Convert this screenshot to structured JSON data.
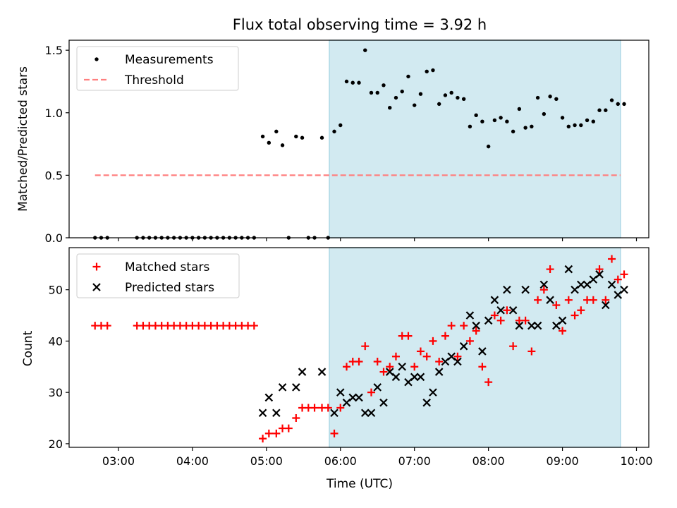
{
  "chart_data": [
    {
      "type": "scatter",
      "title": "Flux total observing time = 3.92 h",
      "xlabel": "",
      "ylabel": "Matched/Predicted stars",
      "xlim": [
        "02:20",
        "10:10"
      ],
      "ylim": [
        0,
        1.58
      ],
      "y_ticks": [
        0.0,
        0.5,
        1.0,
        1.5
      ],
      "y_tick_labels": [
        "0.0",
        "0.5",
        "1.0",
        "1.5"
      ],
      "x_ticks": [
        "03:00",
        "04:00",
        "05:00",
        "06:00",
        "07:00",
        "08:00",
        "09:00",
        "10:00"
      ],
      "x_tick_labels": [],
      "shaded_interval": {
        "start": "05:51",
        "end": "09:47",
        "color": "#add8e6"
      },
      "legend": {
        "location": "upper left",
        "entries": [
          "Measurements",
          "Threshold"
        ]
      },
      "series": [
        {
          "name": "Measurements",
          "style": "dot",
          "color": "#000000",
          "points": [
            [
              "02:41",
              0
            ],
            [
              "02:46",
              0
            ],
            [
              "02:51",
              0
            ],
            [
              "03:15",
              0
            ],
            [
              "03:20",
              0
            ],
            [
              "03:25",
              0
            ],
            [
              "03:30",
              0
            ],
            [
              "03:35",
              0
            ],
            [
              "03:40",
              0
            ],
            [
              "03:45",
              0
            ],
            [
              "03:50",
              0
            ],
            [
              "03:55",
              0
            ],
            [
              "04:00",
              0
            ],
            [
              "04:05",
              0
            ],
            [
              "04:10",
              0
            ],
            [
              "04:15",
              0
            ],
            [
              "04:20",
              0
            ],
            [
              "04:25",
              0
            ],
            [
              "04:30",
              0
            ],
            [
              "04:35",
              0
            ],
            [
              "04:40",
              0
            ],
            [
              "04:45",
              0
            ],
            [
              "04:50",
              0
            ],
            [
              "04:57",
              0.81
            ],
            [
              "05:02",
              0.76
            ],
            [
              "05:08",
              0.85
            ],
            [
              "05:13",
              0.74
            ],
            [
              "05:18",
              0
            ],
            [
              "05:24",
              0.81
            ],
            [
              "05:29",
              0.8
            ],
            [
              "05:34",
              0
            ],
            [
              "05:39",
              0
            ],
            [
              "05:45",
              0.8
            ],
            [
              "05:50",
              0
            ],
            [
              "05:55",
              0.85
            ],
            [
              "06:00",
              0.9
            ],
            [
              "06:05",
              1.25
            ],
            [
              "06:10",
              1.24
            ],
            [
              "06:15",
              1.24
            ],
            [
              "06:20",
              1.5
            ],
            [
              "06:25",
              1.16
            ],
            [
              "06:30",
              1.16
            ],
            [
              "06:35",
              1.22
            ],
            [
              "06:40",
              1.04
            ],
            [
              "06:45",
              1.12
            ],
            [
              "06:50",
              1.17
            ],
            [
              "06:55",
              1.29
            ],
            [
              "07:00",
              1.06
            ],
            [
              "07:05",
              1.15
            ],
            [
              "07:10",
              1.33
            ],
            [
              "07:15",
              1.34
            ],
            [
              "07:20",
              1.07
            ],
            [
              "07:25",
              1.14
            ],
            [
              "07:30",
              1.16
            ],
            [
              "07:35",
              1.12
            ],
            [
              "07:40",
              1.11
            ],
            [
              "07:45",
              0.89
            ],
            [
              "07:50",
              0.98
            ],
            [
              "07:55",
              0.93
            ],
            [
              "08:00",
              0.73
            ],
            [
              "08:05",
              0.94
            ],
            [
              "08:10",
              0.96
            ],
            [
              "08:15",
              0.93
            ],
            [
              "08:20",
              0.85
            ],
            [
              "08:25",
              1.03
            ],
            [
              "08:30",
              0.88
            ],
            [
              "08:35",
              0.89
            ],
            [
              "08:40",
              1.12
            ],
            [
              "08:45",
              0.99
            ],
            [
              "08:50",
              1.13
            ],
            [
              "08:55",
              1.11
            ],
            [
              "09:00",
              0.96
            ],
            [
              "09:05",
              0.89
            ],
            [
              "09:10",
              0.9
            ],
            [
              "09:15",
              0.9
            ],
            [
              "09:20",
              0.94
            ],
            [
              "09:25",
              0.93
            ],
            [
              "09:30",
              1.02
            ],
            [
              "09:35",
              1.02
            ],
            [
              "09:40",
              1.1
            ],
            [
              "09:45",
              1.07
            ],
            [
              "09:50",
              1.07
            ]
          ]
        },
        {
          "name": "Threshold",
          "style": "dashed-line",
          "color": "#ff7f7f",
          "points": [
            [
              "02:41",
              0.5
            ],
            [
              "09:47",
              0.5
            ]
          ]
        }
      ]
    },
    {
      "type": "scatter",
      "title": "",
      "xlabel": "Time (UTC)",
      "ylabel": "Count",
      "xlim": [
        "02:20",
        "10:10"
      ],
      "ylim": [
        19.3,
        58.2
      ],
      "y_ticks": [
        20,
        30,
        40,
        50
      ],
      "y_tick_labels": [
        "20",
        "30",
        "40",
        "50"
      ],
      "x_ticks": [
        "03:00",
        "04:00",
        "05:00",
        "06:00",
        "07:00",
        "08:00",
        "09:00",
        "10:00"
      ],
      "x_tick_labels": [
        "03:00",
        "04:00",
        "05:00",
        "06:00",
        "07:00",
        "08:00",
        "09:00",
        "10:00"
      ],
      "shaded_interval": {
        "start": "05:51",
        "end": "09:47",
        "color": "#add8e6"
      },
      "legend": {
        "location": "upper left",
        "entries": [
          "Matched stars",
          "Predicted stars"
        ]
      },
      "series": [
        {
          "name": "Matched stars",
          "style": "plus",
          "color": "#ff0000",
          "points": [
            [
              "02:41",
              43
            ],
            [
              "02:46",
              43
            ],
            [
              "02:51",
              43
            ],
            [
              "03:15",
              43
            ],
            [
              "03:20",
              43
            ],
            [
              "03:25",
              43
            ],
            [
              "03:30",
              43
            ],
            [
              "03:35",
              43
            ],
            [
              "03:40",
              43
            ],
            [
              "03:45",
              43
            ],
            [
              "03:50",
              43
            ],
            [
              "03:55",
              43
            ],
            [
              "04:00",
              43
            ],
            [
              "04:05",
              43
            ],
            [
              "04:10",
              43
            ],
            [
              "04:15",
              43
            ],
            [
              "04:20",
              43
            ],
            [
              "04:25",
              43
            ],
            [
              "04:30",
              43
            ],
            [
              "04:35",
              43
            ],
            [
              "04:40",
              43
            ],
            [
              "04:45",
              43
            ],
            [
              "04:50",
              43
            ],
            [
              "04:57",
              21
            ],
            [
              "05:02",
              22
            ],
            [
              "05:08",
              22
            ],
            [
              "05:13",
              23
            ],
            [
              "05:18",
              23
            ],
            [
              "05:24",
              25
            ],
            [
              "05:29",
              27
            ],
            [
              "05:34",
              27
            ],
            [
              "05:39",
              27
            ],
            [
              "05:45",
              27
            ],
            [
              "05:50",
              27
            ],
            [
              "05:55",
              22
            ],
            [
              "06:00",
              27
            ],
            [
              "06:05",
              35
            ],
            [
              "06:10",
              36
            ],
            [
              "06:15",
              36
            ],
            [
              "06:20",
              39
            ],
            [
              "06:25",
              30
            ],
            [
              "06:30",
              36
            ],
            [
              "06:35",
              34
            ],
            [
              "06:40",
              35
            ],
            [
              "06:45",
              37
            ],
            [
              "06:50",
              41
            ],
            [
              "06:55",
              41
            ],
            [
              "07:00",
              35
            ],
            [
              "07:05",
              38
            ],
            [
              "07:10",
              37
            ],
            [
              "07:15",
              40
            ],
            [
              "07:20",
              36
            ],
            [
              "07:25",
              41
            ],
            [
              "07:30",
              43
            ],
            [
              "07:35",
              37
            ],
            [
              "07:40",
              43
            ],
            [
              "07:45",
              40
            ],
            [
              "07:50",
              42
            ],
            [
              "07:55",
              35
            ],
            [
              "08:00",
              32
            ],
            [
              "08:05",
              45
            ],
            [
              "08:10",
              44
            ],
            [
              "08:15",
              46
            ],
            [
              "08:20",
              39
            ],
            [
              "08:25",
              44
            ],
            [
              "08:30",
              44
            ],
            [
              "08:35",
              38
            ],
            [
              "08:40",
              48
            ],
            [
              "08:45",
              50
            ],
            [
              "08:50",
              54
            ],
            [
              "08:55",
              47
            ],
            [
              "09:00",
              42
            ],
            [
              "09:05",
              48
            ],
            [
              "09:10",
              45
            ],
            [
              "09:15",
              46
            ],
            [
              "09:20",
              48
            ],
            [
              "09:25",
              48
            ],
            [
              "09:30",
              54
            ],
            [
              "09:35",
              48
            ],
            [
              "09:40",
              56
            ],
            [
              "09:45",
              52
            ],
            [
              "09:50",
              53
            ]
          ]
        },
        {
          "name": "Predicted stars",
          "style": "x",
          "color": "#000000",
          "points": [
            [
              "04:57",
              26
            ],
            [
              "05:02",
              29
            ],
            [
              "05:08",
              26
            ],
            [
              "05:13",
              31
            ],
            [
              "05:24",
              31
            ],
            [
              "05:29",
              34
            ],
            [
              "05:45",
              34
            ],
            [
              "05:55",
              26
            ],
            [
              "06:00",
              30
            ],
            [
              "06:05",
              28
            ],
            [
              "06:10",
              29
            ],
            [
              "06:15",
              29
            ],
            [
              "06:20",
              26
            ],
            [
              "06:25",
              26
            ],
            [
              "06:30",
              31
            ],
            [
              "06:35",
              28
            ],
            [
              "06:40",
              34
            ],
            [
              "06:45",
              33
            ],
            [
              "06:50",
              35
            ],
            [
              "06:55",
              32
            ],
            [
              "07:00",
              33
            ],
            [
              "07:05",
              33
            ],
            [
              "07:10",
              28
            ],
            [
              "07:15",
              30
            ],
            [
              "07:20",
              34
            ],
            [
              "07:25",
              36
            ],
            [
              "07:30",
              37
            ],
            [
              "07:35",
              36
            ],
            [
              "07:40",
              39
            ],
            [
              "07:45",
              45
            ],
            [
              "07:50",
              43
            ],
            [
              "07:55",
              38
            ],
            [
              "08:00",
              44
            ],
            [
              "08:05",
              48
            ],
            [
              "08:10",
              46
            ],
            [
              "08:15",
              50
            ],
            [
              "08:20",
              46
            ],
            [
              "08:25",
              43
            ],
            [
              "08:30",
              50
            ],
            [
              "08:35",
              43
            ],
            [
              "08:40",
              43
            ],
            [
              "08:45",
              51
            ],
            [
              "08:50",
              48
            ],
            [
              "08:55",
              43
            ],
            [
              "09:00",
              44
            ],
            [
              "09:05",
              54
            ],
            [
              "09:10",
              50
            ],
            [
              "09:15",
              51
            ],
            [
              "09:20",
              51
            ],
            [
              "09:25",
              52
            ],
            [
              "09:30",
              53
            ],
            [
              "09:35",
              47
            ],
            [
              "09:40",
              51
            ],
            [
              "09:45",
              49
            ],
            [
              "09:50",
              50
            ]
          ]
        }
      ]
    }
  ]
}
